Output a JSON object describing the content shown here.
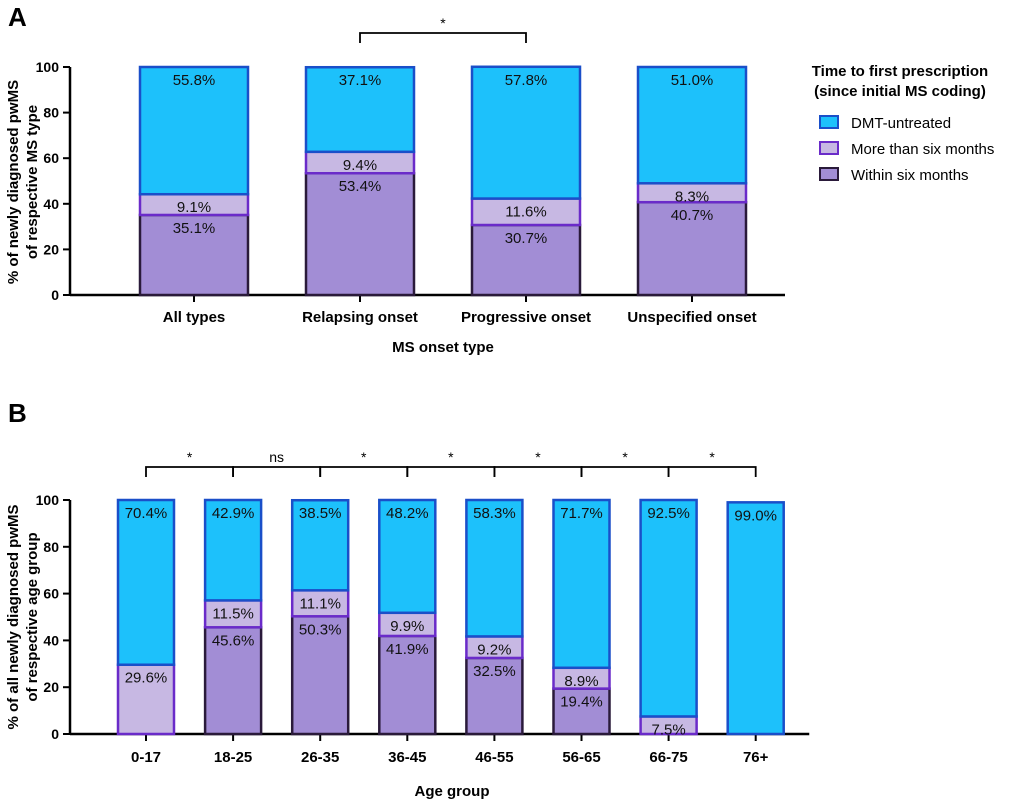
{
  "panels": {
    "a": "A",
    "b": "B"
  },
  "legend": {
    "title_line1": "Time to first prescription",
    "title_line2": "(since initial MS coding)",
    "items": [
      {
        "label": "DMT-untreated",
        "color": "#1DC1FB",
        "border": "#1A4FC9"
      },
      {
        "label": "More than six months",
        "color": "#C7B8E3",
        "border": "#6A2BC9"
      },
      {
        "label": "Within six months",
        "color": "#A28DD5",
        "border": "#2A1A3A"
      }
    ]
  },
  "chart_data": [
    {
      "type": "bar",
      "stacked": true,
      "panel": "A",
      "xlabel": "MS onset type",
      "ylabel_line1": "% of newly diagnosed pwMS",
      "ylabel_line2": "of respective MS type",
      "ylim": [
        0,
        100
      ],
      "yticks": [
        "0",
        "20",
        "40",
        "60",
        "80",
        "100"
      ],
      "categories": [
        "All types",
        "Relapsing onset",
        "Progressive onset",
        "Unspecified onset"
      ],
      "series": [
        {
          "name": "Within six months",
          "values": [
            35.1,
            53.4,
            30.7,
            40.7
          ],
          "labels": [
            "35.1%",
            "53.4%",
            "30.7%",
            "40.7%"
          ]
        },
        {
          "name": "More than six months",
          "values": [
            9.1,
            9.4,
            11.6,
            8.3
          ],
          "labels": [
            "9.1%",
            "9.4%",
            "11.6%",
            "8.3%"
          ]
        },
        {
          "name": "DMT-untreated",
          "values": [
            55.8,
            37.1,
            57.8,
            51.0
          ],
          "labels": [
            "55.8%",
            "37.1%",
            "57.8%",
            "51.0%"
          ]
        }
      ],
      "significance": [
        {
          "from": 1,
          "to": 2,
          "label": "*"
        }
      ]
    },
    {
      "type": "bar",
      "stacked": true,
      "panel": "B",
      "xlabel": "Age group",
      "ylabel_line1": "% of all newly diagnosed pwMS",
      "ylabel_line2": "of respective age group",
      "ylim": [
        0,
        100
      ],
      "yticks": [
        "0",
        "20",
        "40",
        "60",
        "80",
        "100"
      ],
      "categories": [
        "0-17",
        "18-25",
        "26-35",
        "36-45",
        "46-55",
        "56-65",
        "66-75",
        "76+"
      ],
      "series": [
        {
          "name": "Within six months",
          "values": [
            0,
            45.6,
            50.3,
            41.9,
            32.5,
            19.4,
            0,
            0
          ],
          "labels": [
            "",
            "45.6%",
            "50.3%",
            "41.9%",
            "32.5%",
            "19.4%",
            "",
            ""
          ]
        },
        {
          "name": "More than six months",
          "values": [
            29.6,
            11.5,
            11.1,
            9.9,
            9.2,
            8.9,
            7.5,
            0
          ],
          "labels": [
            "29.6%",
            "11.5%",
            "11.1%",
            "9.9%",
            "9.2%",
            "8.9%",
            "7.5%",
            ""
          ]
        },
        {
          "name": "DMT-untreated",
          "values": [
            70.4,
            42.9,
            38.5,
            48.2,
            58.3,
            71.7,
            92.5,
            99.0
          ],
          "labels": [
            "70.4%",
            "42.9%",
            "38.5%",
            "48.2%",
            "58.3%",
            "71.7%",
            "92.5%",
            "99.0%"
          ]
        }
      ],
      "significance": [
        {
          "from": 0,
          "to": 1,
          "label": "*"
        },
        {
          "from": 1,
          "to": 2,
          "label": "ns"
        },
        {
          "from": 2,
          "to": 3,
          "label": "*"
        },
        {
          "from": 3,
          "to": 4,
          "label": "*"
        },
        {
          "from": 4,
          "to": 5,
          "label": "*"
        },
        {
          "from": 5,
          "to": 6,
          "label": "*"
        },
        {
          "from": 6,
          "to": 7,
          "label": "*"
        }
      ]
    }
  ]
}
